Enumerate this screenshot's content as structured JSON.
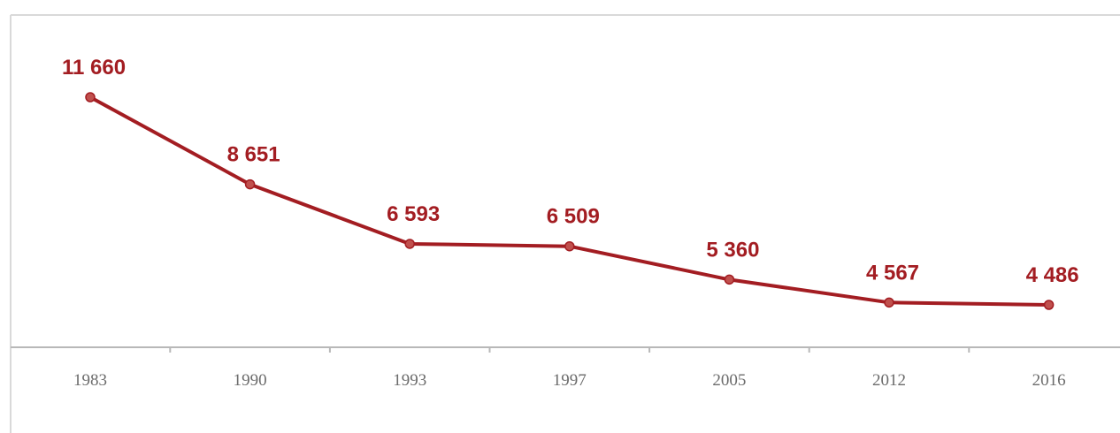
{
  "chart_data": {
    "type": "line",
    "categories": [
      "1983",
      "1990",
      "1993",
      "1997",
      "2005",
      "2012",
      "2016"
    ],
    "values": [
      11660,
      8651,
      6593,
      6509,
      5360,
      4567,
      4486
    ],
    "value_labels": [
      "11 660",
      "8 651",
      "6 593",
      "6 509",
      "5 360",
      "4 567",
      "4 486"
    ],
    "title": "",
    "xlabel": "",
    "ylabel": "",
    "ylim": [
      3000,
      12000
    ],
    "grid": false,
    "legend": "none",
    "line_color": "#a31d22",
    "marker_color": "#c0504d"
  }
}
